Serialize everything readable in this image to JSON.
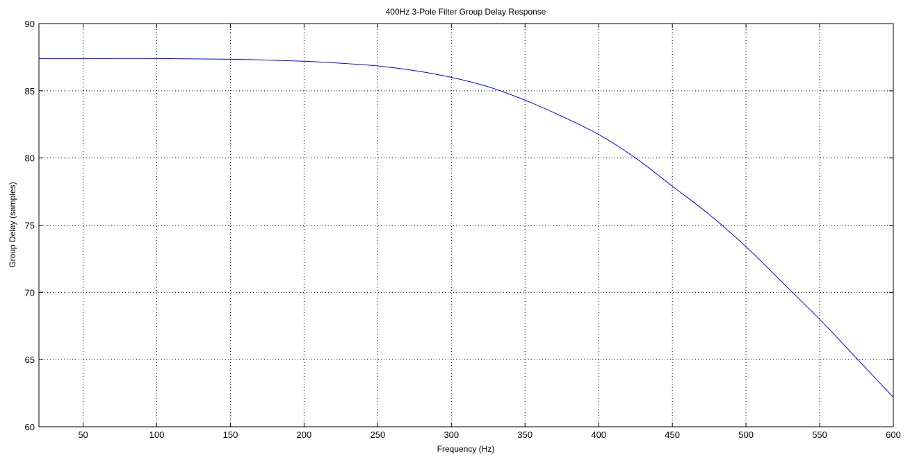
{
  "chart_data": {
    "type": "line",
    "title": "400Hz 3-Pole Filter Group Delay Response",
    "xlabel": "Frequency (Hz)",
    "ylabel": "Group Delay (samples)",
    "xlim": [
      20,
      600
    ],
    "ylim": [
      60,
      90
    ],
    "xticks": [
      50,
      100,
      150,
      200,
      250,
      300,
      350,
      400,
      450,
      500,
      550,
      600
    ],
    "yticks": [
      60,
      65,
      70,
      75,
      80,
      85,
      90
    ],
    "grid": true,
    "line_color": "#0000ff",
    "series": [
      {
        "x": [
          20,
          50,
          100,
          150,
          200,
          225,
          250,
          275,
          300,
          325,
          350,
          375,
          400,
          425,
          450,
          475,
          500,
          525,
          550,
          575,
          600
        ],
        "y": [
          87.4,
          87.4,
          87.4,
          87.35,
          87.2,
          87.05,
          86.85,
          86.5,
          86.0,
          85.3,
          84.3,
          83.1,
          81.75,
          80.0,
          77.9,
          75.8,
          73.4,
          70.7,
          68.0,
          65.1,
          62.2
        ]
      }
    ]
  }
}
